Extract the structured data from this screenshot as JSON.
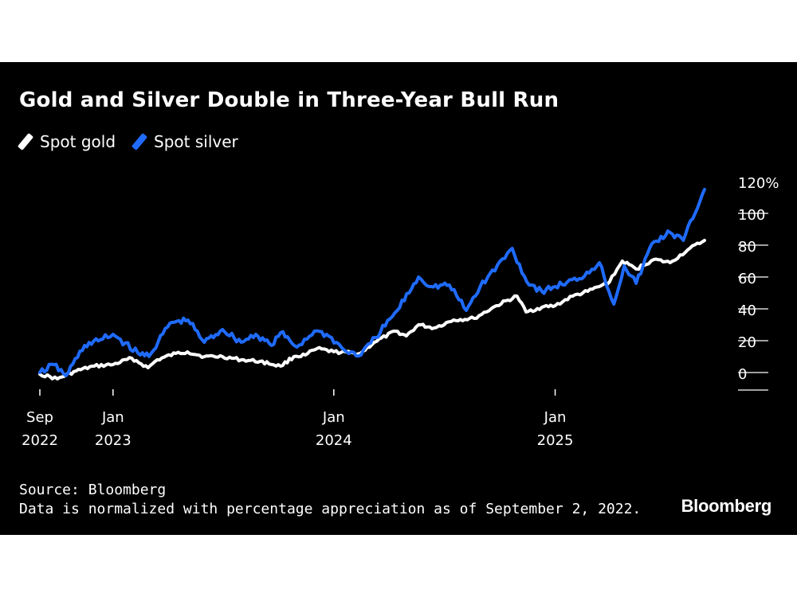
{
  "title": "Gold and Silver Double in Three-Year Bull Run",
  "legend": [
    {
      "label": "Spot gold",
      "color": "#ffffff"
    },
    {
      "label": "Spot silver",
      "color": "#1f6bff"
    }
  ],
  "footer": {
    "source": "Source: Bloomberg",
    "note": "Data is normalized with percentage appreciation as of September 2, 2022."
  },
  "brand": "Bloomberg",
  "chart_data": {
    "type": "line",
    "title": "Gold and Silver Double in Three-Year Bull Run",
    "y_ticks": [
      "120%",
      "100",
      "80",
      "60",
      "40",
      "20",
      "0"
    ],
    "ylim": [
      -10,
      120
    ],
    "x_ticks": [
      {
        "month": "Sep",
        "year": "2022",
        "date": "2022-09-02"
      },
      {
        "month": "Jan",
        "year": "2023",
        "date": "2023-01-01"
      },
      {
        "month": "Jan",
        "year": "2024",
        "date": "2024-01-01"
      },
      {
        "month": "Jan",
        "year": "2025",
        "date": "2025-01-01"
      }
    ],
    "xlim": [
      "2022-09-02",
      "2025-09-05"
    ],
    "series": [
      {
        "name": "Spot gold",
        "color": "#ffffff",
        "x": [
          "2022-09-02",
          "2022-10-01",
          "2022-11-01",
          "2022-12-01",
          "2023-01-01",
          "2023-02-01",
          "2023-02-28",
          "2023-03-15",
          "2023-04-15",
          "2023-05-04",
          "2023-06-01",
          "2023-07-01",
          "2023-08-01",
          "2023-09-01",
          "2023-10-05",
          "2023-10-27",
          "2023-11-15",
          "2023-12-04",
          "2024-01-01",
          "2024-02-14",
          "2024-03-08",
          "2024-04-12",
          "2024-04-30",
          "2024-05-20",
          "2024-06-15",
          "2024-07-17",
          "2024-08-20",
          "2024-09-26",
          "2024-10-30",
          "2024-11-14",
          "2024-12-10",
          "2025-01-01",
          "2025-01-30",
          "2025-02-24",
          "2025-03-15",
          "2025-04-01",
          "2025-04-22",
          "2025-05-15",
          "2025-06-13",
          "2025-07-10",
          "2025-08-08",
          "2025-09-05"
        ],
        "values": [
          0,
          -3,
          2,
          5,
          6,
          10,
          4,
          9,
          13,
          14,
          11,
          11,
          9,
          8,
          5,
          11,
          12,
          16,
          14,
          13,
          20,
          27,
          24,
          31,
          29,
          34,
          35,
          43,
          49,
          39,
          42,
          43,
          49,
          52,
          55,
          58,
          71,
          66,
          72,
          70,
          78,
          84
        ]
      },
      {
        "name": "Spot silver",
        "color": "#1f6bff",
        "x": [
          "2022-09-02",
          "2022-09-25",
          "2022-10-15",
          "2022-11-15",
          "2022-12-15",
          "2023-01-01",
          "2023-02-15",
          "2023-03-05",
          "2023-04-05",
          "2023-05-05",
          "2023-06-01",
          "2023-07-01",
          "2023-08-01",
          "2023-08-25",
          "2023-09-20",
          "2023-10-05",
          "2023-11-01",
          "2023-11-30",
          "2023-12-20",
          "2024-01-22",
          "2024-02-15",
          "2024-03-10",
          "2024-04-15",
          "2024-05-20",
          "2024-06-10",
          "2024-07-10",
          "2024-08-07",
          "2024-08-30",
          "2024-10-22",
          "2024-11-15",
          "2024-12-10",
          "2025-01-01",
          "2025-02-10",
          "2025-03-15",
          "2025-04-08",
          "2025-04-25",
          "2025-05-15",
          "2025-06-10",
          "2025-07-10",
          "2025-08-01",
          "2025-09-05"
        ],
        "values": [
          1,
          6,
          -1,
          18,
          22,
          25,
          12,
          13,
          32,
          34,
          20,
          28,
          20,
          25,
          18,
          26,
          17,
          27,
          25,
          14,
          12,
          23,
          40,
          61,
          55,
          56,
          40,
          55,
          79,
          58,
          52,
          55,
          60,
          70,
          44,
          68,
          57,
          82,
          89,
          84,
          116
        ]
      }
    ]
  }
}
